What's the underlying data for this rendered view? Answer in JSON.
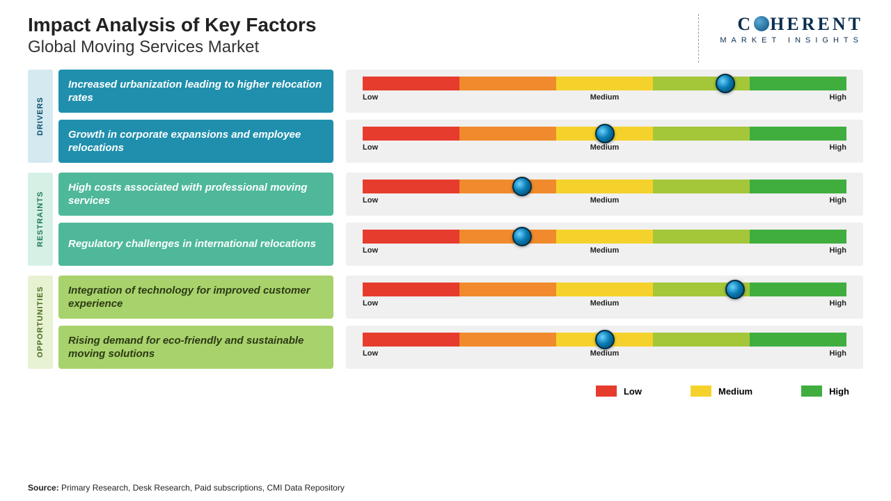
{
  "header": {
    "title": "Impact Analysis of Key Factors",
    "subtitle": "Global Moving Services Market"
  },
  "logo": {
    "name_part1": "C",
    "name_part2": "HERENT",
    "tagline": "MARKET INSIGHTS"
  },
  "gauge": {
    "segment_colors": [
      "#e63c2e",
      "#f08a2c",
      "#f5d22b",
      "#a4c639",
      "#3fae3f"
    ],
    "label_low": "Low",
    "label_medium": "Medium",
    "label_high": "High",
    "background": "#f0f0f0"
  },
  "groups": [
    {
      "label": "DRIVERS",
      "tab_bg": "#d5e9f0",
      "tab_color": "#0b4f6c",
      "box_bg": "#1f8fad",
      "box_color": "#ffffff",
      "items": [
        {
          "text": "Increased urbanization leading to higher relocation rates",
          "value_pct": 75
        },
        {
          "text": "Growth in corporate expansions and employee relocations",
          "value_pct": 50
        }
      ]
    },
    {
      "label": "RESTRAINTS",
      "tab_bg": "#d6f0e6",
      "tab_color": "#1f7a5a",
      "box_bg": "#4fb89a",
      "box_color": "#ffffff",
      "items": [
        {
          "text": "High costs associated with professional moving services",
          "value_pct": 33
        },
        {
          "text": "Regulatory challenges in international relocations",
          "value_pct": 33
        }
      ]
    },
    {
      "label": "OPPORTUNITIES",
      "tab_bg": "#e7f2d3",
      "tab_color": "#4a6b1f",
      "box_bg": "#a8d26b",
      "box_color": "#2c3a15",
      "items": [
        {
          "text": "Integration of technology for improved customer experience",
          "value_pct": 77
        },
        {
          "text": "Rising demand for eco-friendly and sustainable moving solutions",
          "value_pct": 50
        }
      ]
    }
  ],
  "legend": [
    {
      "label": "Low",
      "color": "#e63c2e"
    },
    {
      "label": "Medium",
      "color": "#f5d22b"
    },
    {
      "label": "High",
      "color": "#3fae3f"
    }
  ],
  "source": {
    "prefix": "Source:",
    "text": "Primary Research, Desk Research, Paid subscriptions, CMI Data Repository"
  }
}
